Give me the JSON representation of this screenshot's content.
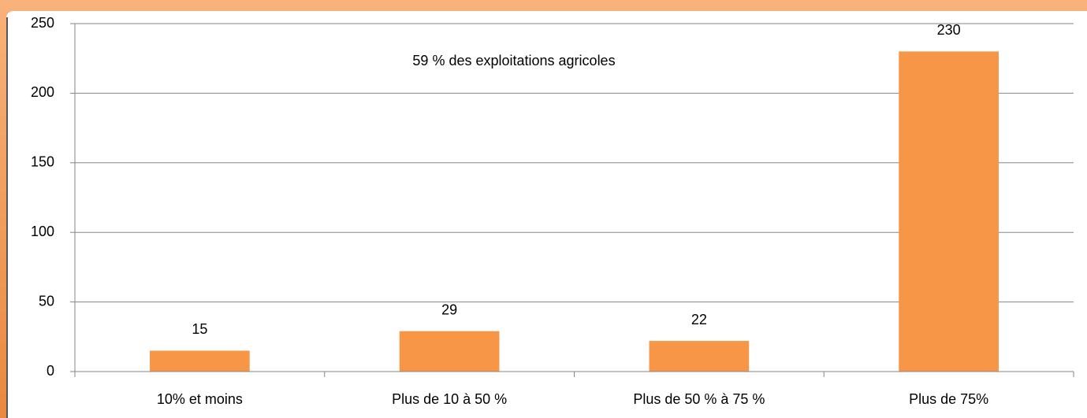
{
  "chart_data": {
    "type": "bar",
    "annotation": "59 % des exploitations agricoles",
    "categories": [
      "10% et moins",
      "Plus de 10 à 50 %",
      "Plus de 50 % à 75 %",
      "Plus de 75%"
    ],
    "values": [
      15,
      29,
      22,
      230
    ],
    "color": "#f79646",
    "ylim": [
      0,
      250
    ],
    "yticks": [
      0,
      50,
      100,
      150,
      200,
      250
    ],
    "grid": true
  }
}
